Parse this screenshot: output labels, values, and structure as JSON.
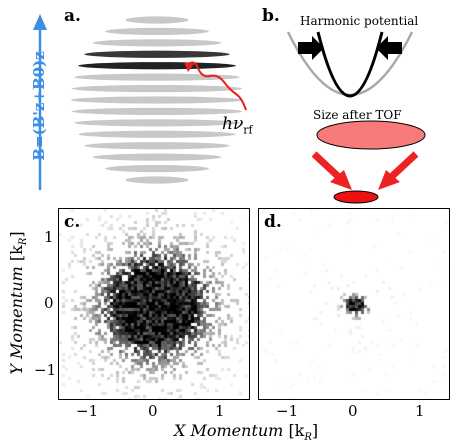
{
  "panels": {
    "a": "a.",
    "b": "b.",
    "c": "c.",
    "d": "d."
  },
  "panel_a": {
    "field_label": "B=(B'z+B0)z",
    "photon_label": "hν",
    "photon_sub": "rf",
    "colors": {
      "field_arrow": "#3b8ee6",
      "photon": "#e8201c",
      "slice_light": "#c8c8c8",
      "slice_dark": "#383838"
    }
  },
  "panel_b": {
    "potential_label": "Harmonic potential",
    "size_label": "Size after TOF",
    "colors": {
      "cloud_large": "#f87b7b",
      "cloud_small": "#ee1111",
      "arrows": "#ee2222"
    }
  },
  "heatmaps": {
    "y_label": "Y Momentum",
    "x_label": "X Momentum",
    "unit": "[k",
    "unit_sub": "R",
    "unit_close": "]",
    "y_ticks": [
      "1",
      "0",
      "−1"
    ],
    "x_ticks": [
      "−1",
      "0",
      "1"
    ]
  },
  "chart_data": [
    {
      "type": "heatmap",
      "panel": "c.",
      "description_values": {
        "center": [
          0,
          0
        ],
        "core_radius": 0.55,
        "halo_radius": 0.95
      },
      "x_ticks": [
        -1,
        0,
        1
      ],
      "y_ticks": [
        -1,
        0,
        1
      ],
      "xlim": [
        -1.4,
        1.4
      ],
      "ylim": [
        -1.4,
        1.4
      ]
    },
    {
      "type": "heatmap",
      "panel": "d.",
      "description_values": {
        "center": [
          0,
          0
        ],
        "core_radius": 0.12
      },
      "x_ticks": [
        -1,
        0,
        1
      ],
      "y_ticks": [
        -1,
        0,
        1
      ],
      "xlim": [
        -1.4,
        1.4
      ],
      "ylim": [
        -1.4,
        1.4
      ]
    }
  ]
}
